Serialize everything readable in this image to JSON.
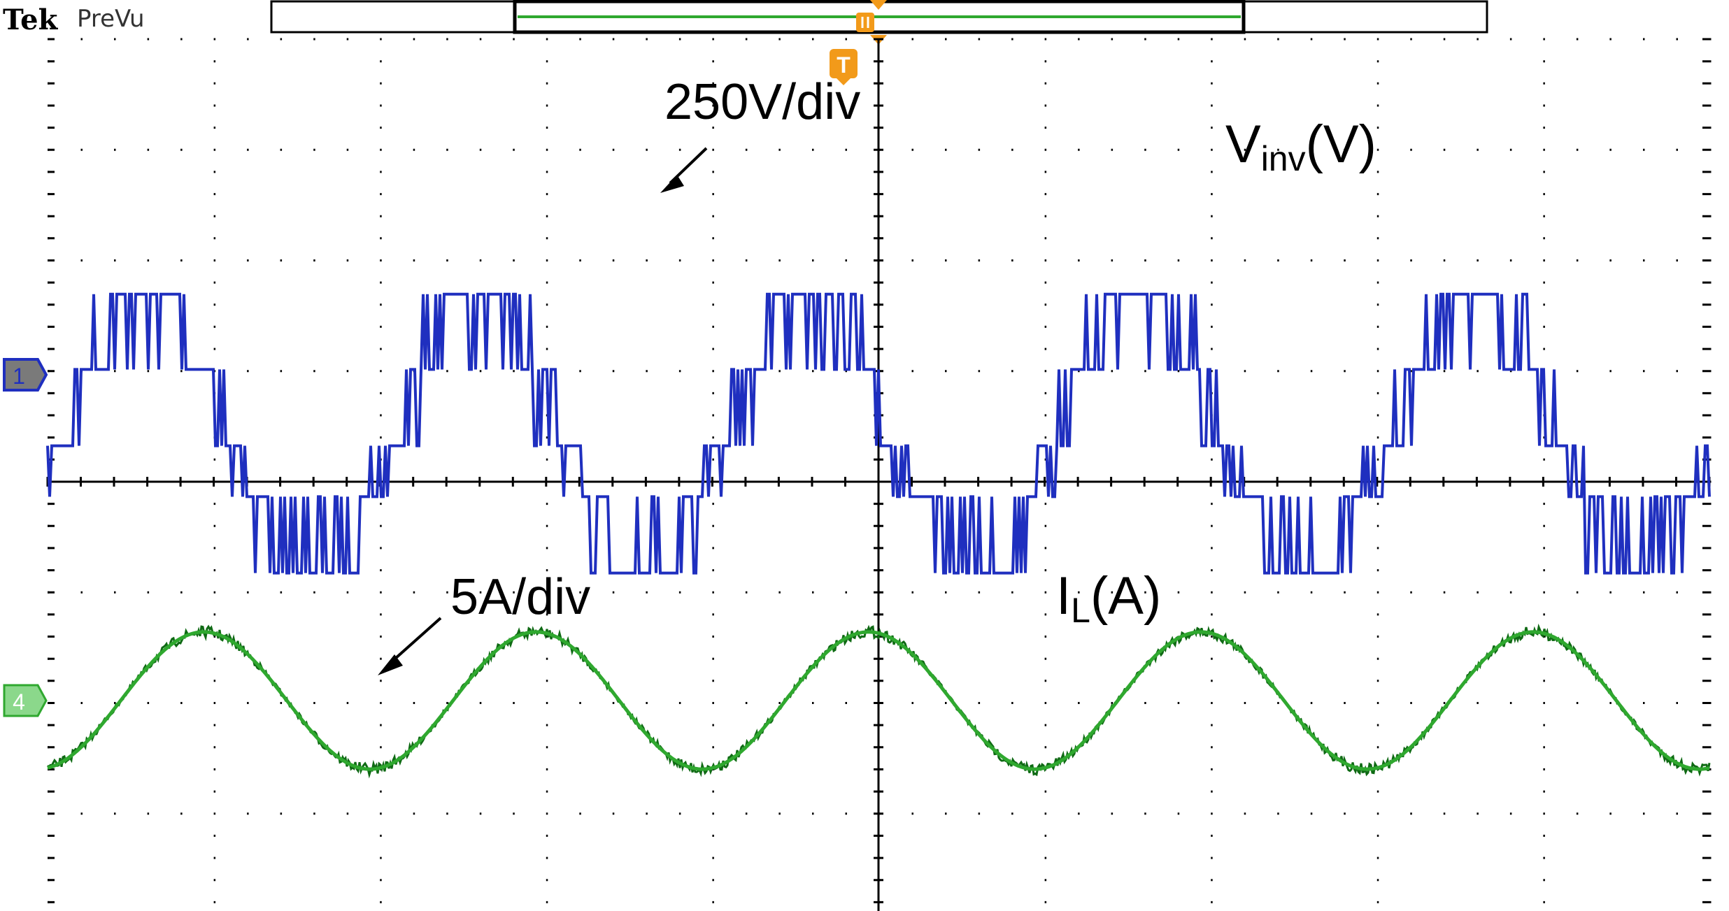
{
  "header": {
    "brand": "Tek",
    "mode": "PreVu",
    "trigger_marker": "T"
  },
  "chart_data": {
    "type": "line",
    "grid": true,
    "divisions": {
      "horizontal": 10,
      "vertical": 8
    },
    "cycles_shown": 5,
    "series": [
      {
        "name": "Vinv(V)",
        "name_main": "V",
        "name_sub": "inv",
        "name_suffix": "(V)",
        "channel": "1",
        "scale": "250V/div",
        "volts_per_div": 250,
        "waveform": "five-level multilevel inverter staircase with PWM switching",
        "levels_div": [
          -0.92,
          -0.23,
          0.23,
          0.92,
          1.6
        ],
        "color": "#1f2fbf"
      },
      {
        "name": "IL(A)",
        "name_main": "I",
        "name_sub": "L",
        "name_suffix": "(A)",
        "channel": "4",
        "scale": "5A/div",
        "amps_per_div": 5,
        "waveform": "sinusoid with switching ripple",
        "amplitude_div": 0.62,
        "color": "#2fa82f"
      }
    ]
  },
  "colors": {
    "ch1": "#1f2fbf",
    "ch4": "#2fa82f",
    "ch4_dark": "#0f6a14",
    "trigger": "#f29a1a",
    "grid": "#000000"
  }
}
